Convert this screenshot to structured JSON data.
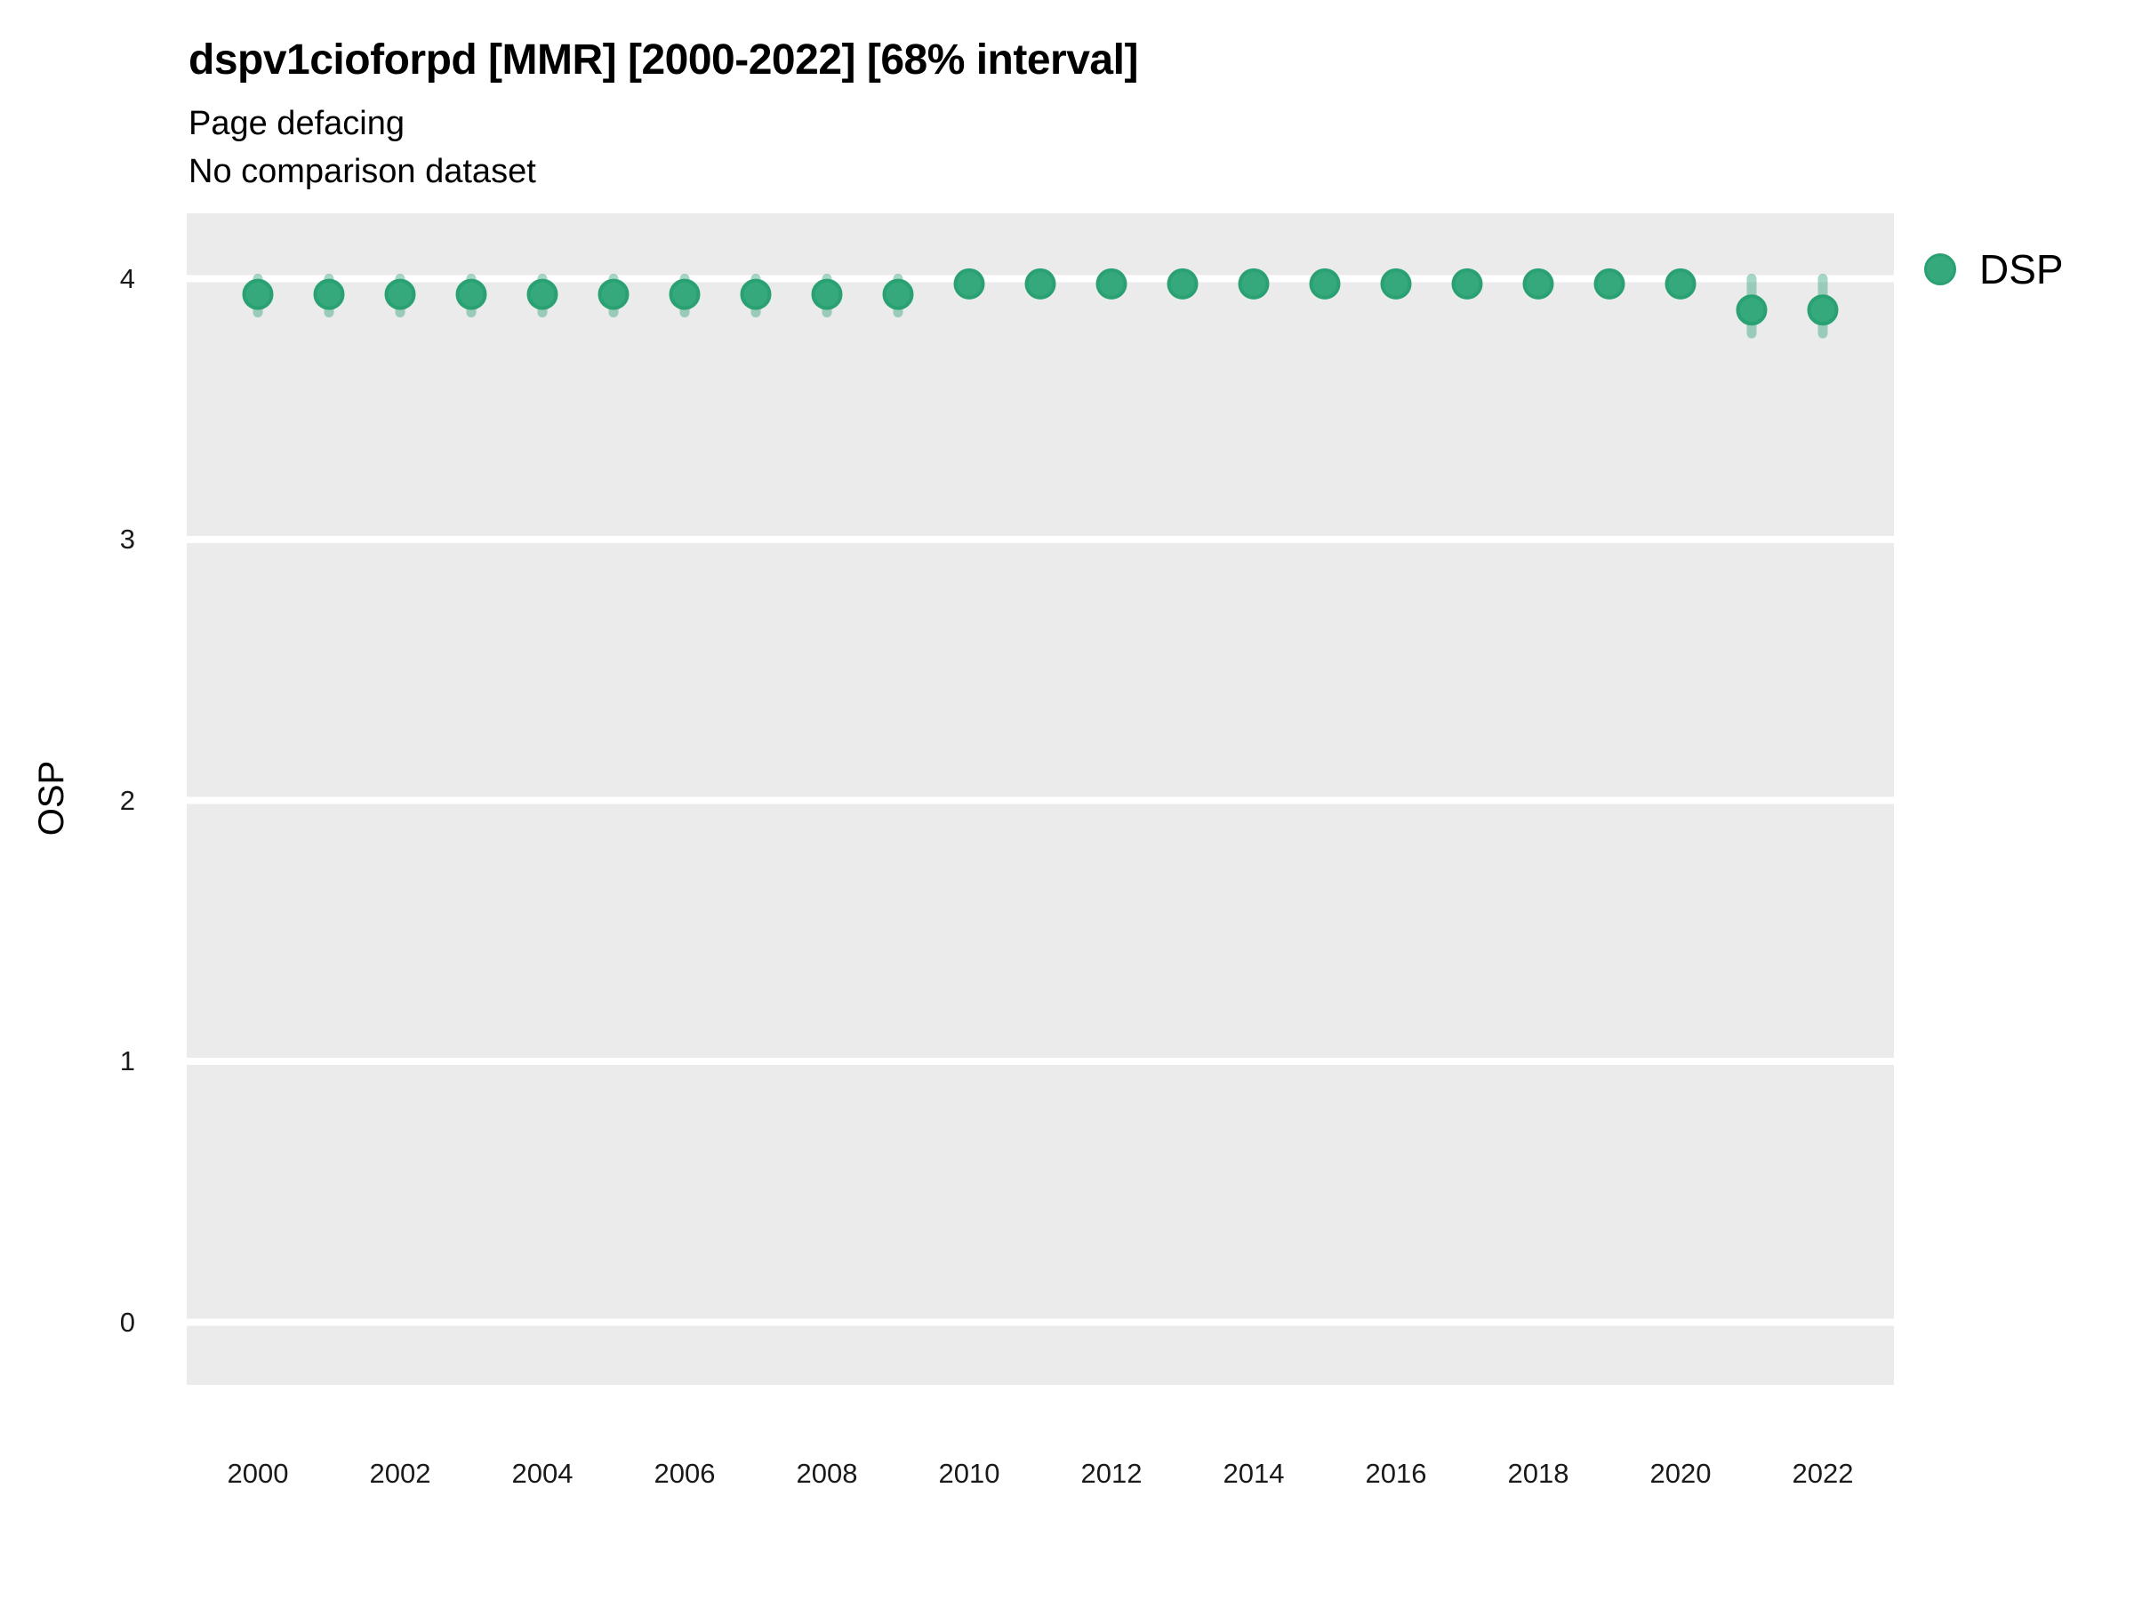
{
  "header": {
    "title": "dspv1cioforpd [MMR] [2000-2022] [68% interval]",
    "subtitle1": "Page defacing",
    "subtitle2": "No comparison dataset"
  },
  "legend": {
    "position": "right",
    "items": [
      {
        "label": "DSP",
        "color": "#35A87C",
        "border_color": "#2AA173",
        "marker": "circle"
      }
    ]
  },
  "axes": {
    "y_title": "OSP",
    "y_ticks": [
      4,
      3,
      2,
      1,
      0
    ],
    "x_ticks": [
      2000,
      2002,
      2004,
      2006,
      2008,
      2010,
      2012,
      2014,
      2016,
      2018,
      2020,
      2022
    ]
  },
  "colors": {
    "panel_bg": "#EBEBEB",
    "grid": "#FFFFFF",
    "point_fill": "#35A87C",
    "point_stroke": "#2AA173",
    "interval": "rgba(40,160,118,0.42)",
    "text": "#000000",
    "tick_text": "#1a1a1a"
  },
  "chart_data": {
    "type": "scatter",
    "title": "dspv1cioforpd [MMR] [2000-2022] [68% interval]",
    "subtitle": "Page defacing / No comparison dataset",
    "xlabel": "",
    "ylabel": "OSP",
    "ylim": [
      -0.24,
      4.26
    ],
    "xlim": [
      1999,
      2023
    ],
    "grid": "horizontal-major-only",
    "legend_position": "right",
    "interval_level": "68%",
    "x": [
      2000,
      2001,
      2002,
      2003,
      2004,
      2005,
      2006,
      2007,
      2008,
      2009,
      2010,
      2011,
      2012,
      2013,
      2014,
      2015,
      2016,
      2017,
      2018,
      2019,
      2020,
      2021,
      2022
    ],
    "series": [
      {
        "name": "DSP",
        "values": [
          3.94,
          3.94,
          3.94,
          3.94,
          3.94,
          3.94,
          3.94,
          3.94,
          3.94,
          3.94,
          3.98,
          3.98,
          3.98,
          3.98,
          3.98,
          3.98,
          3.98,
          3.98,
          3.98,
          3.98,
          3.98,
          3.88,
          3.88
        ],
        "interval_low": [
          3.87,
          3.87,
          3.87,
          3.87,
          3.87,
          3.87,
          3.87,
          3.87,
          3.87,
          3.87,
          3.95,
          3.95,
          3.95,
          3.95,
          3.95,
          3.95,
          3.95,
          3.95,
          3.95,
          3.95,
          3.95,
          3.79,
          3.79
        ],
        "interval_high": [
          4.0,
          4.0,
          4.0,
          4.0,
          4.0,
          4.0,
          4.0,
          4.0,
          4.0,
          4.0,
          4.0,
          4.0,
          4.0,
          4.0,
          4.0,
          4.0,
          4.0,
          4.0,
          4.0,
          4.0,
          4.0,
          4.0,
          4.0
        ]
      }
    ]
  }
}
